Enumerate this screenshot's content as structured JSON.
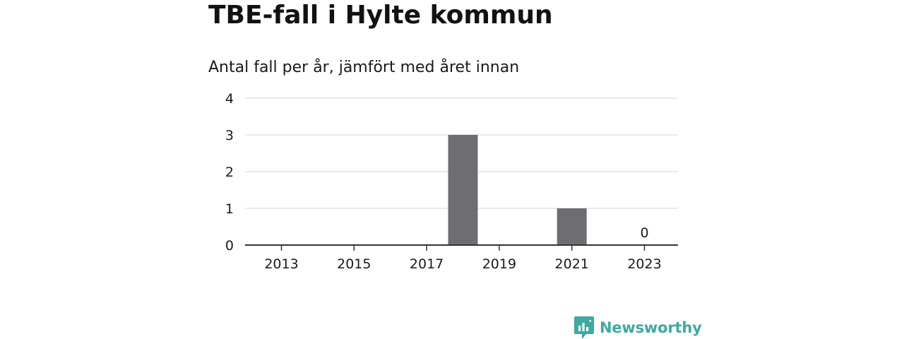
{
  "header": {
    "title": "TBE-fall i Hylte kommun",
    "subtitle": "Antal fall per år, jämfört med året innan"
  },
  "brand": {
    "name": "Newsworthy",
    "logo_icon": "bar-chart-speech-bubble-icon",
    "color": "#3ea99f"
  },
  "colors": {
    "bar": "#6e6d72",
    "grid": "#dddddd",
    "axis": "#333333",
    "text": "#1a1a1a"
  },
  "chart_data": {
    "type": "bar",
    "categories": [
      "2013",
      "2014",
      "2015",
      "2016",
      "2017",
      "2018",
      "2019",
      "2020",
      "2021",
      "2022",
      "2023"
    ],
    "values": [
      0,
      0,
      0,
      0,
      0,
      3,
      0,
      0,
      1,
      0,
      0
    ],
    "x_tick_labels": [
      "2013",
      "2015",
      "2017",
      "2019",
      "2021",
      "2023"
    ],
    "y_ticks": [
      0,
      1,
      2,
      3,
      4
    ],
    "ylim": [
      0,
      4
    ],
    "annotations": [
      {
        "category": "2023",
        "text": "0"
      }
    ],
    "grid": true,
    "legend": "none",
    "title": "",
    "xlabel": "",
    "ylabel": ""
  }
}
